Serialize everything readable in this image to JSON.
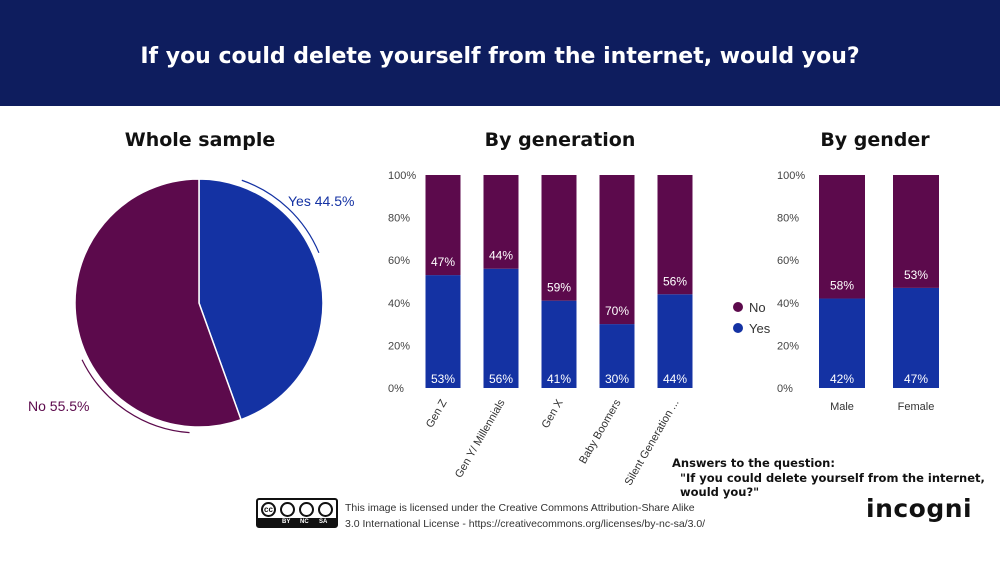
{
  "header": {
    "title": "If you could delete yourself from the internet, would you?"
  },
  "panels": {
    "whole_sample_title": "Whole sample",
    "generation_title": "By generation",
    "gender_title": "By gender"
  },
  "legend": {
    "no_label": "No",
    "yes_label": "Yes"
  },
  "colors": {
    "yes": "#1432a3",
    "no": "#5c0a4c",
    "header_bg": "#0e1d5e"
  },
  "chart_data": [
    {
      "type": "pie",
      "title": "Whole sample",
      "slices": [
        {
          "label": "Yes",
          "value": 44.5,
          "display": "Yes 44.5%"
        },
        {
          "label": "No",
          "value": 55.5,
          "display": "No 55.5%"
        }
      ]
    },
    {
      "type": "bar",
      "stacked": true,
      "title": "By generation",
      "categories": [
        "Gen Z",
        "Gen Y/ Millennials",
        "Gen X",
        "Baby Boomers",
        "Silent Generation ..."
      ],
      "series": [
        {
          "name": "Yes",
          "values": [
            53,
            56,
            41,
            30,
            44
          ],
          "labels": [
            "53%",
            "56%",
            "41%",
            "30%",
            "44%"
          ]
        },
        {
          "name": "No",
          "values": [
            47,
            44,
            59,
            70,
            56
          ],
          "labels": [
            "47%",
            "44%",
            "59%",
            "70%",
            "56%"
          ]
        }
      ],
      "ylim": [
        0,
        100
      ],
      "yticks": [
        "0%",
        "20%",
        "40%",
        "60%",
        "80%",
        "100%"
      ],
      "legend": "right"
    },
    {
      "type": "bar",
      "stacked": true,
      "title": "By gender",
      "categories": [
        "Male",
        "Female"
      ],
      "series": [
        {
          "name": "Yes",
          "values": [
            42,
            47
          ],
          "labels": [
            "42%",
            "47%"
          ]
        },
        {
          "name": "No",
          "values": [
            58,
            53
          ],
          "labels": [
            "58%",
            "53%"
          ]
        }
      ],
      "ylim": [
        0,
        100
      ],
      "yticks": [
        "0%",
        "20%",
        "40%",
        "60%",
        "80%",
        "100%"
      ]
    }
  ],
  "footnote": {
    "line1": "Answers to the question:",
    "line2": "\"If you could delete yourself from the internet, would you?\""
  },
  "license": {
    "line1": "This image is licensed under the Creative Commons Attribution-Share Alike",
    "line2": "3.0 International License - https://creativecommons.org/licenses/by-nc-sa/3.0/",
    "badge_cc": "cc",
    "badge_by": "BY",
    "badge_nc": "NC",
    "badge_sa": "SA"
  },
  "brand": {
    "name": "incogni"
  }
}
